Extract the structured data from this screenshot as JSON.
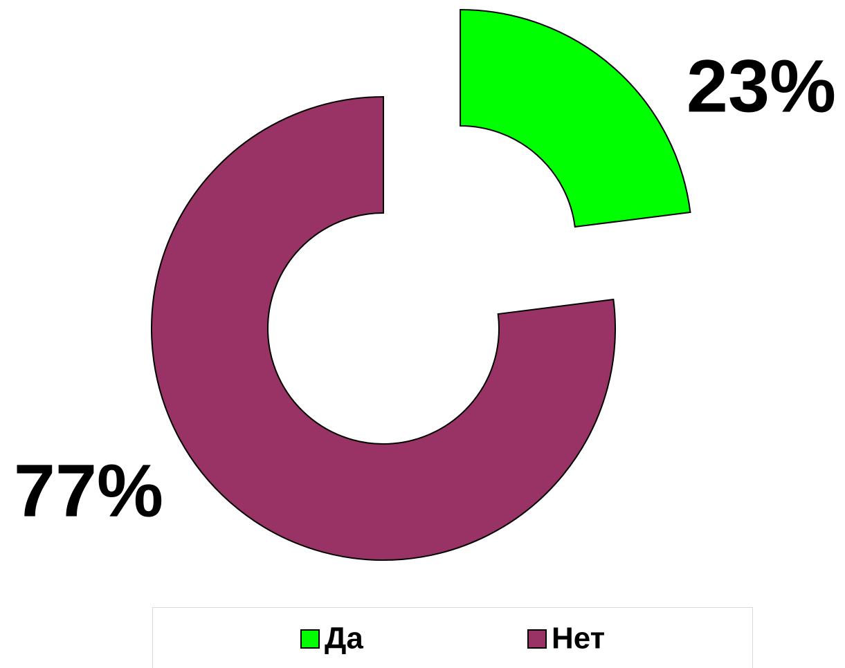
{
  "chart_data": {
    "type": "donut",
    "categories": [
      "Да",
      "Нет"
    ],
    "values": [
      23,
      77
    ],
    "value_labels": [
      "23%",
      "77%"
    ],
    "colors": [
      "#00ff00",
      "#993366"
    ],
    "exploded": [
      0
    ]
  }
}
